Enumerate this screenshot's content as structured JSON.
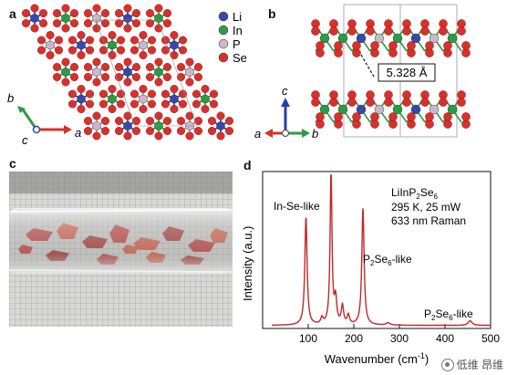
{
  "panels": {
    "a": "a",
    "b": "b",
    "c": "c",
    "d": "d"
  },
  "legend": [
    {
      "label": "Li",
      "color": "#3848a8"
    },
    {
      "label": "In",
      "color": "#2f9a46"
    },
    {
      "label": "P",
      "color": "#c9b8c8"
    },
    {
      "label": "Se",
      "color": "#d8302c"
    }
  ],
  "axes_a": {
    "b": "b",
    "c": "c",
    "a": "a"
  },
  "axes_b": {
    "c": "c",
    "a": "a",
    "b": "b"
  },
  "spacing_label": "5.328 Å",
  "photo": {
    "description_icon": "crystal-ampoule-photo"
  },
  "colors": {
    "raman": "#c0282a",
    "axis_green": "#2e9a45",
    "axis_red": "#d6332c",
    "axis_blue": "#2b3fa8"
  },
  "chart_data": {
    "type": "line",
    "xlabel_html": [
      "Wavenumber (cm",
      "-1",
      ")"
    ],
    "ylabel": "Intensity (a.u.)",
    "xlim": [
      0,
      500
    ],
    "xticks": [
      100,
      200,
      300,
      400,
      500
    ],
    "ylim": [
      0,
      1
    ],
    "series": [
      {
        "peaks": [
          {
            "x": 95,
            "y": 0.7,
            "w": 3
          },
          {
            "x": 130,
            "y": 0.04,
            "w": 3
          },
          {
            "x": 150,
            "y": 1.0,
            "w": 2.5
          },
          {
            "x": 160,
            "y": 0.16,
            "w": 3
          },
          {
            "x": 175,
            "y": 0.12,
            "w": 3
          },
          {
            "x": 188,
            "y": 0.06,
            "w": 3
          },
          {
            "x": 220,
            "y": 0.76,
            "w": 3
          },
          {
            "x": 275,
            "y": 0.015,
            "w": 5
          },
          {
            "x": 455,
            "y": 0.03,
            "w": 5
          }
        ],
        "baseline": 0.02
      }
    ],
    "annotations": {
      "insete": "In-Se-like",
      "p2se6_a_main": "P",
      "p2se6_a_sub1": "2",
      "p2se6_a_mid": "Se",
      "p2se6_a_sub2": "6",
      "p2se6_a_tail": "-like",
      "compound_pre": "LiInP",
      "compound_sub1": "2",
      "compound_mid": "Se",
      "compound_sub2": "6",
      "cond1": "295 K, 25 mW",
      "cond2": "633 nm Raman"
    }
  },
  "watermark": "低维 昂维"
}
